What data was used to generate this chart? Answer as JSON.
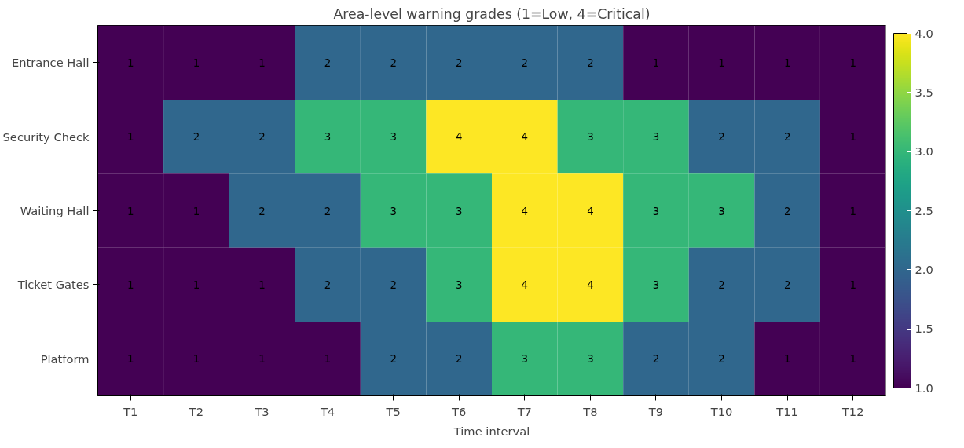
{
  "chart_data": {
    "type": "heatmap",
    "title": "Area-level warning grades (1=Low, 4=Critical)",
    "xlabel": "Time interval",
    "categories": [
      "T1",
      "T2",
      "T3",
      "T4",
      "T5",
      "T6",
      "T7",
      "T8",
      "T9",
      "T10",
      "T11",
      "T12"
    ],
    "y_categories": [
      "Entrance Hall",
      "Security Check",
      "Waiting Hall",
      "Ticket Gates",
      "Platform"
    ],
    "cells": [
      [
        1,
        1,
        1,
        2,
        2,
        2,
        2,
        2,
        1,
        1,
        1,
        1
      ],
      [
        1,
        2,
        2,
        3,
        3,
        4,
        4,
        3,
        3,
        2,
        2,
        1
      ],
      [
        1,
        1,
        2,
        2,
        3,
        3,
        4,
        4,
        3,
        3,
        2,
        1
      ],
      [
        1,
        1,
        1,
        2,
        2,
        3,
        4,
        4,
        3,
        2,
        2,
        1
      ],
      [
        1,
        1,
        1,
        1,
        2,
        2,
        3,
        3,
        2,
        2,
        1,
        1
      ]
    ],
    "clim": [
      1,
      4
    ],
    "cticks": [
      {
        "value": 1,
        "label": "1.0"
      },
      {
        "value": 1.5,
        "label": "1.5"
      },
      {
        "value": 2,
        "label": "2.0"
      },
      {
        "value": 2.5,
        "label": "2.5"
      },
      {
        "value": 3,
        "label": "3.0"
      },
      {
        "value": 3.5,
        "label": "3.5"
      },
      {
        "value": 4,
        "label": "4.0"
      }
    ],
    "data_labels": true,
    "grid": false
  }
}
